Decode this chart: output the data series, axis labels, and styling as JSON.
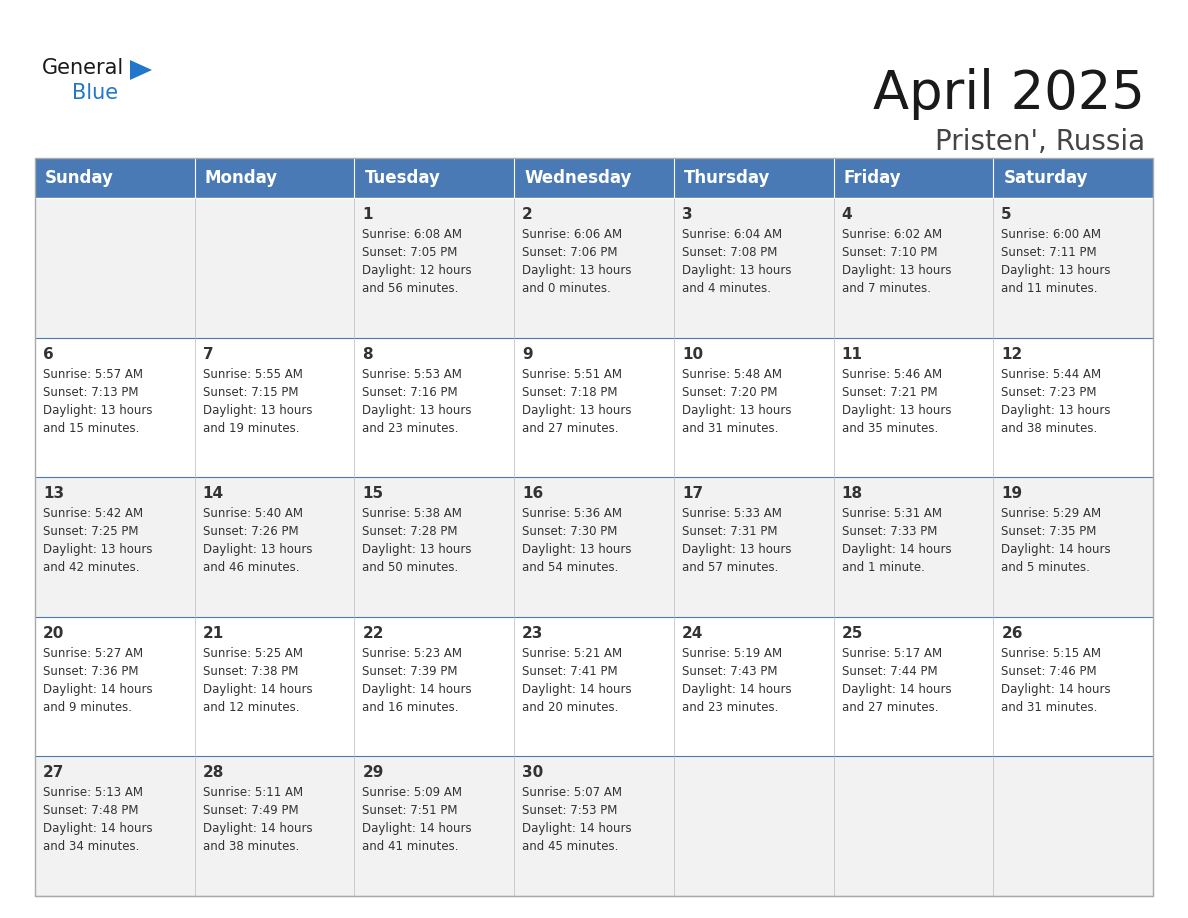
{
  "title": "April 2025",
  "subtitle": "Pristen', Russia",
  "header_color": "#4a7ab5",
  "header_text_color": "#FFFFFF",
  "cell_bg_even": "#f2f2f2",
  "cell_bg_odd": "#ffffff",
  "border_color": "#4a7ab5",
  "text_color": "#333333",
  "day_names": [
    "Sunday",
    "Monday",
    "Tuesday",
    "Wednesday",
    "Thursday",
    "Friday",
    "Saturday"
  ],
  "weeks": [
    [
      {
        "day": null,
        "info": null
      },
      {
        "day": null,
        "info": null
      },
      {
        "day": "1",
        "info": "Sunrise: 6:08 AM\nSunset: 7:05 PM\nDaylight: 12 hours\nand 56 minutes."
      },
      {
        "day": "2",
        "info": "Sunrise: 6:06 AM\nSunset: 7:06 PM\nDaylight: 13 hours\nand 0 minutes."
      },
      {
        "day": "3",
        "info": "Sunrise: 6:04 AM\nSunset: 7:08 PM\nDaylight: 13 hours\nand 4 minutes."
      },
      {
        "day": "4",
        "info": "Sunrise: 6:02 AM\nSunset: 7:10 PM\nDaylight: 13 hours\nand 7 minutes."
      },
      {
        "day": "5",
        "info": "Sunrise: 6:00 AM\nSunset: 7:11 PM\nDaylight: 13 hours\nand 11 minutes."
      }
    ],
    [
      {
        "day": "6",
        "info": "Sunrise: 5:57 AM\nSunset: 7:13 PM\nDaylight: 13 hours\nand 15 minutes."
      },
      {
        "day": "7",
        "info": "Sunrise: 5:55 AM\nSunset: 7:15 PM\nDaylight: 13 hours\nand 19 minutes."
      },
      {
        "day": "8",
        "info": "Sunrise: 5:53 AM\nSunset: 7:16 PM\nDaylight: 13 hours\nand 23 minutes."
      },
      {
        "day": "9",
        "info": "Sunrise: 5:51 AM\nSunset: 7:18 PM\nDaylight: 13 hours\nand 27 minutes."
      },
      {
        "day": "10",
        "info": "Sunrise: 5:48 AM\nSunset: 7:20 PM\nDaylight: 13 hours\nand 31 minutes."
      },
      {
        "day": "11",
        "info": "Sunrise: 5:46 AM\nSunset: 7:21 PM\nDaylight: 13 hours\nand 35 minutes."
      },
      {
        "day": "12",
        "info": "Sunrise: 5:44 AM\nSunset: 7:23 PM\nDaylight: 13 hours\nand 38 minutes."
      }
    ],
    [
      {
        "day": "13",
        "info": "Sunrise: 5:42 AM\nSunset: 7:25 PM\nDaylight: 13 hours\nand 42 minutes."
      },
      {
        "day": "14",
        "info": "Sunrise: 5:40 AM\nSunset: 7:26 PM\nDaylight: 13 hours\nand 46 minutes."
      },
      {
        "day": "15",
        "info": "Sunrise: 5:38 AM\nSunset: 7:28 PM\nDaylight: 13 hours\nand 50 minutes."
      },
      {
        "day": "16",
        "info": "Sunrise: 5:36 AM\nSunset: 7:30 PM\nDaylight: 13 hours\nand 54 minutes."
      },
      {
        "day": "17",
        "info": "Sunrise: 5:33 AM\nSunset: 7:31 PM\nDaylight: 13 hours\nand 57 minutes."
      },
      {
        "day": "18",
        "info": "Sunrise: 5:31 AM\nSunset: 7:33 PM\nDaylight: 14 hours\nand 1 minute."
      },
      {
        "day": "19",
        "info": "Sunrise: 5:29 AM\nSunset: 7:35 PM\nDaylight: 14 hours\nand 5 minutes."
      }
    ],
    [
      {
        "day": "20",
        "info": "Sunrise: 5:27 AM\nSunset: 7:36 PM\nDaylight: 14 hours\nand 9 minutes."
      },
      {
        "day": "21",
        "info": "Sunrise: 5:25 AM\nSunset: 7:38 PM\nDaylight: 14 hours\nand 12 minutes."
      },
      {
        "day": "22",
        "info": "Sunrise: 5:23 AM\nSunset: 7:39 PM\nDaylight: 14 hours\nand 16 minutes."
      },
      {
        "day": "23",
        "info": "Sunrise: 5:21 AM\nSunset: 7:41 PM\nDaylight: 14 hours\nand 20 minutes."
      },
      {
        "day": "24",
        "info": "Sunrise: 5:19 AM\nSunset: 7:43 PM\nDaylight: 14 hours\nand 23 minutes."
      },
      {
        "day": "25",
        "info": "Sunrise: 5:17 AM\nSunset: 7:44 PM\nDaylight: 14 hours\nand 27 minutes."
      },
      {
        "day": "26",
        "info": "Sunrise: 5:15 AM\nSunset: 7:46 PM\nDaylight: 14 hours\nand 31 minutes."
      }
    ],
    [
      {
        "day": "27",
        "info": "Sunrise: 5:13 AM\nSunset: 7:48 PM\nDaylight: 14 hours\nand 34 minutes."
      },
      {
        "day": "28",
        "info": "Sunrise: 5:11 AM\nSunset: 7:49 PM\nDaylight: 14 hours\nand 38 minutes."
      },
      {
        "day": "29",
        "info": "Sunrise: 5:09 AM\nSunset: 7:51 PM\nDaylight: 14 hours\nand 41 minutes."
      },
      {
        "day": "30",
        "info": "Sunrise: 5:07 AM\nSunset: 7:53 PM\nDaylight: 14 hours\nand 45 minutes."
      },
      {
        "day": null,
        "info": null
      },
      {
        "day": null,
        "info": null
      },
      {
        "day": null,
        "info": null
      }
    ]
  ],
  "logo_general_color": "#1a1a1a",
  "logo_blue_color": "#2277cc",
  "logo_triangle_color": "#2277cc",
  "title_fontsize": 38,
  "subtitle_fontsize": 20,
  "header_fontsize": 12,
  "day_num_fontsize": 11,
  "info_fontsize": 8.5
}
